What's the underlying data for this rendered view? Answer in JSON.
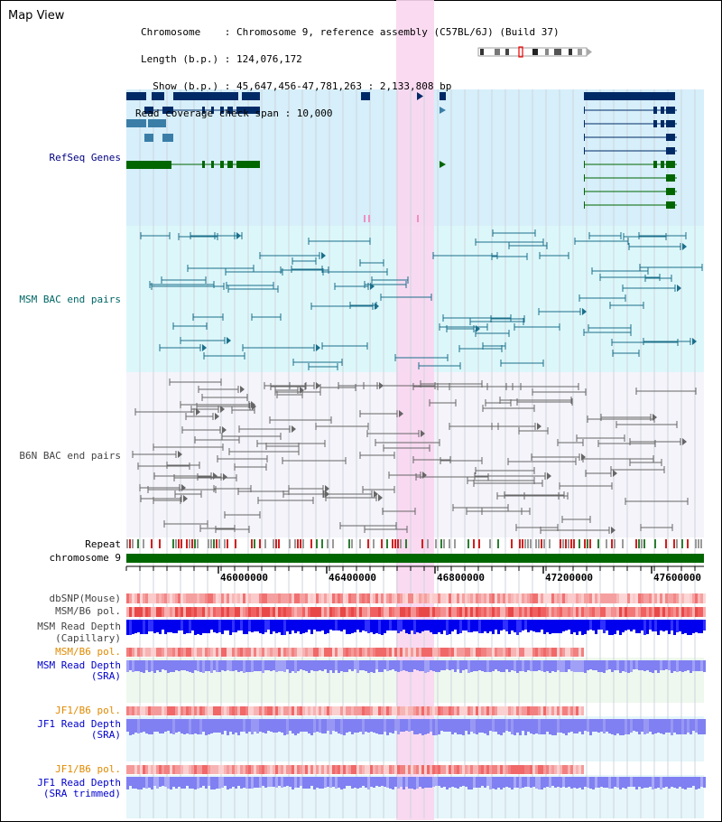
{
  "header": {
    "title": "Map View",
    "info_lines": [
      "Chromosome    : Chromosome 9, reference assembly (C57BL/6J) (Build 37)",
      "Length (b.p.) : 124,076,172",
      "  Show (b.p.) : 45,647,456-47,781,263 : 2,133,808 bp",
      "Read coverage check span : 10,000"
    ]
  },
  "tracks": {
    "refseq": "RefSeq Genes",
    "msm_bac": "MSM BAC end pairs",
    "b6n_bac": "B6N BAC end pairs",
    "repeat": "Repeat",
    "chromosome": "chromosome 9",
    "dbsnp": "dbSNP(Mouse)",
    "msm_b6_pol": "MSM/B6 pol.",
    "msm_read_depth_cap": [
      "MSM Read Depth",
      "(Capillary)"
    ],
    "msm_b6_pol_sra": "MSM/B6 pol.",
    "msm_read_depth_sra": [
      "MSM Read Depth",
      "(SRA)"
    ],
    "jf1_b6_pol": "JF1/B6 pol.",
    "jf1_read_depth": [
      "JF1 Read Depth",
      "(SRA)"
    ],
    "jf1_b6_pol_trim": "JF1/B6 pol.",
    "jf1_read_depth_trim": [
      "JF1 Read Depth",
      "(SRA trimmed)"
    ]
  },
  "axis": {
    "ticks": [
      "46000000",
      "46400000",
      "46800000",
      "47200000",
      "47600000"
    ],
    "tick_values": [
      46000000,
      46400000,
      46800000,
      47200000,
      47600000
    ]
  },
  "colors": {
    "refseq_bg": "#d6effa",
    "msm_bg": "#dcf7fa",
    "b6n_bg": "#f4f4fa",
    "highlight": "#f9d6f0",
    "gene_navy": "#002a66",
    "gene_steel": "#3a7ea8",
    "gene_green": "#006600",
    "chrom_green": "#006600",
    "depth_blue": "#0000ee",
    "depth_lav": "#8080f2",
    "pol_red": "#f06060",
    "label_orange": "#e08a00",
    "label_blue": "#0000cc"
  }
}
